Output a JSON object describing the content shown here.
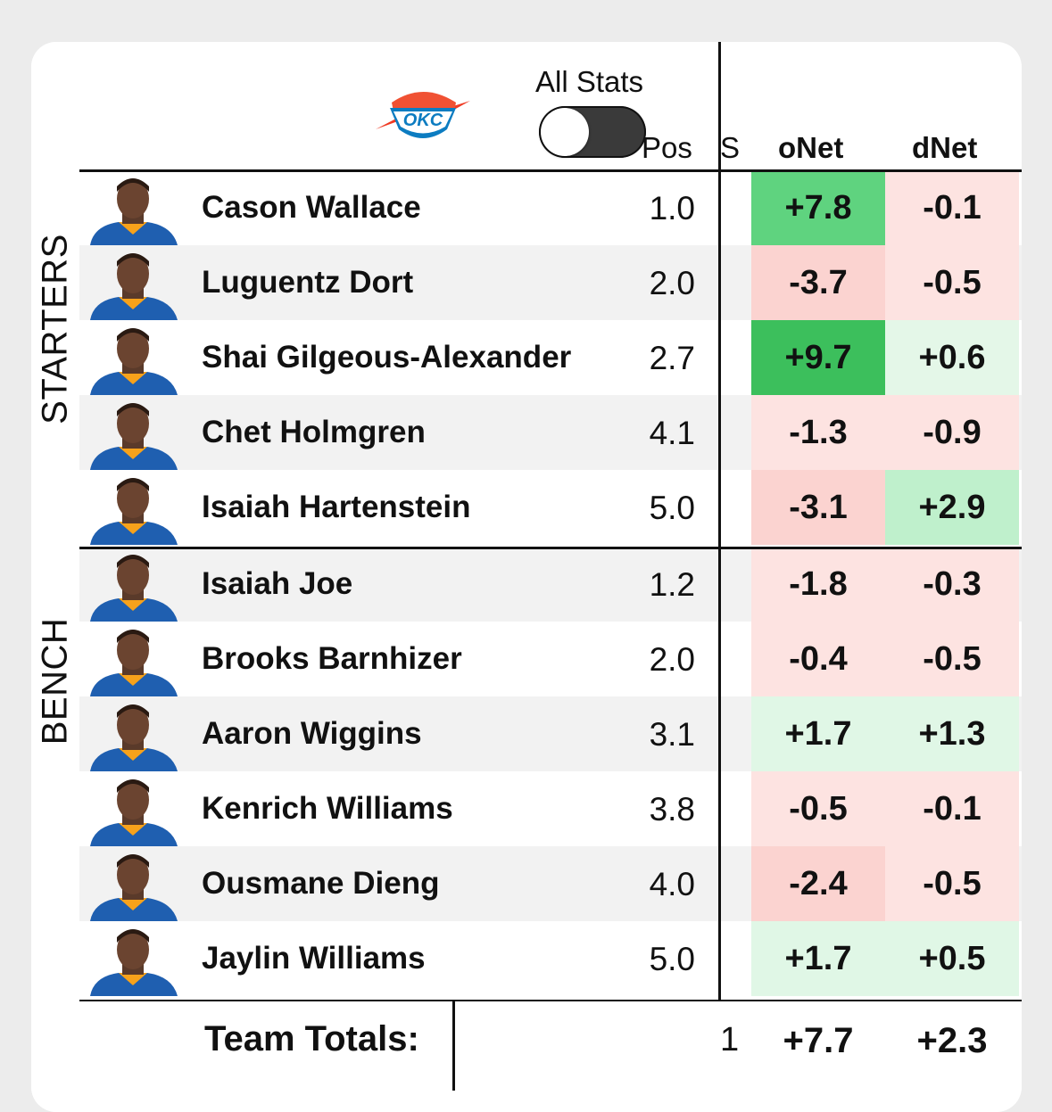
{
  "header": {
    "logo_label": "OKC",
    "toggle_label": "All Stats",
    "toggle_on": false,
    "columns": {
      "pos": "Pos",
      "hidden": "S",
      "onet": "oNet",
      "dnet": "dNet"
    }
  },
  "sections": {
    "starters": "STARTERS",
    "bench": "BENCH"
  },
  "players": [
    {
      "name": "Cason Wallace",
      "pos": "1.0",
      "onet": "+7.8",
      "dnet": "-0.1",
      "onet_color": "#5fd37f",
      "dnet_color": "#fde3e1",
      "row_bg": "#ffffff"
    },
    {
      "name": "Luguentz Dort",
      "pos": "2.0",
      "onet": "-3.7",
      "dnet": "-0.5",
      "onet_color": "#fbd3d0",
      "dnet_color": "#fde3e1",
      "row_bg": "#f2f2f2"
    },
    {
      "name": "Shai Gilgeous-Alexander",
      "pos": "2.7",
      "onet": "+9.7",
      "dnet": "+0.6",
      "onet_color": "#3cbf5c",
      "dnet_color": "#e4f7e8",
      "row_bg": "#ffffff"
    },
    {
      "name": "Chet Holmgren",
      "pos": "4.1",
      "onet": "-1.3",
      "dnet": "-0.9",
      "onet_color": "#fde3e1",
      "dnet_color": "#fde3e1",
      "row_bg": "#f2f2f2"
    },
    {
      "name": "Isaiah Hartenstein",
      "pos": "5.0",
      "onet": "-3.1",
      "dnet": "+2.9",
      "onet_color": "#fbd3d0",
      "dnet_color": "#bff0cc",
      "row_bg": "#ffffff"
    },
    {
      "name": "Isaiah Joe",
      "pos": "1.2",
      "onet": "-1.8",
      "dnet": "-0.3",
      "onet_color": "#fde3e1",
      "dnet_color": "#fde3e1",
      "row_bg": "#f2f2f2"
    },
    {
      "name": "Brooks Barnhizer",
      "pos": "2.0",
      "onet": "-0.4",
      "dnet": "-0.5",
      "onet_color": "#fde3e1",
      "dnet_color": "#fde3e1",
      "row_bg": "#ffffff"
    },
    {
      "name": "Aaron Wiggins",
      "pos": "3.1",
      "onet": "+1.7",
      "dnet": "+1.3",
      "onet_color": "#e0f7e6",
      "dnet_color": "#e0f7e6",
      "row_bg": "#f2f2f2"
    },
    {
      "name": "Kenrich Williams",
      "pos": "3.8",
      "onet": "-0.5",
      "dnet": "-0.1",
      "onet_color": "#fde3e1",
      "dnet_color": "#fde3e1",
      "row_bg": "#ffffff"
    },
    {
      "name": "Ousmane Dieng",
      "pos": "4.0",
      "onet": "-2.4",
      "dnet": "-0.5",
      "onet_color": "#fbd3d0",
      "dnet_color": "#fde3e1",
      "row_bg": "#f2f2f2"
    },
    {
      "name": "Jaylin Williams",
      "pos": "5.0",
      "onet": "+1.7",
      "dnet": "+0.5",
      "onet_color": "#e0f7e6",
      "dnet_color": "#e0f7e6",
      "row_bg": "#ffffff"
    }
  ],
  "totals": {
    "label": "Team Totals:",
    "hidden_value": "1",
    "onet": "+7.7",
    "dnet": "+2.3"
  }
}
